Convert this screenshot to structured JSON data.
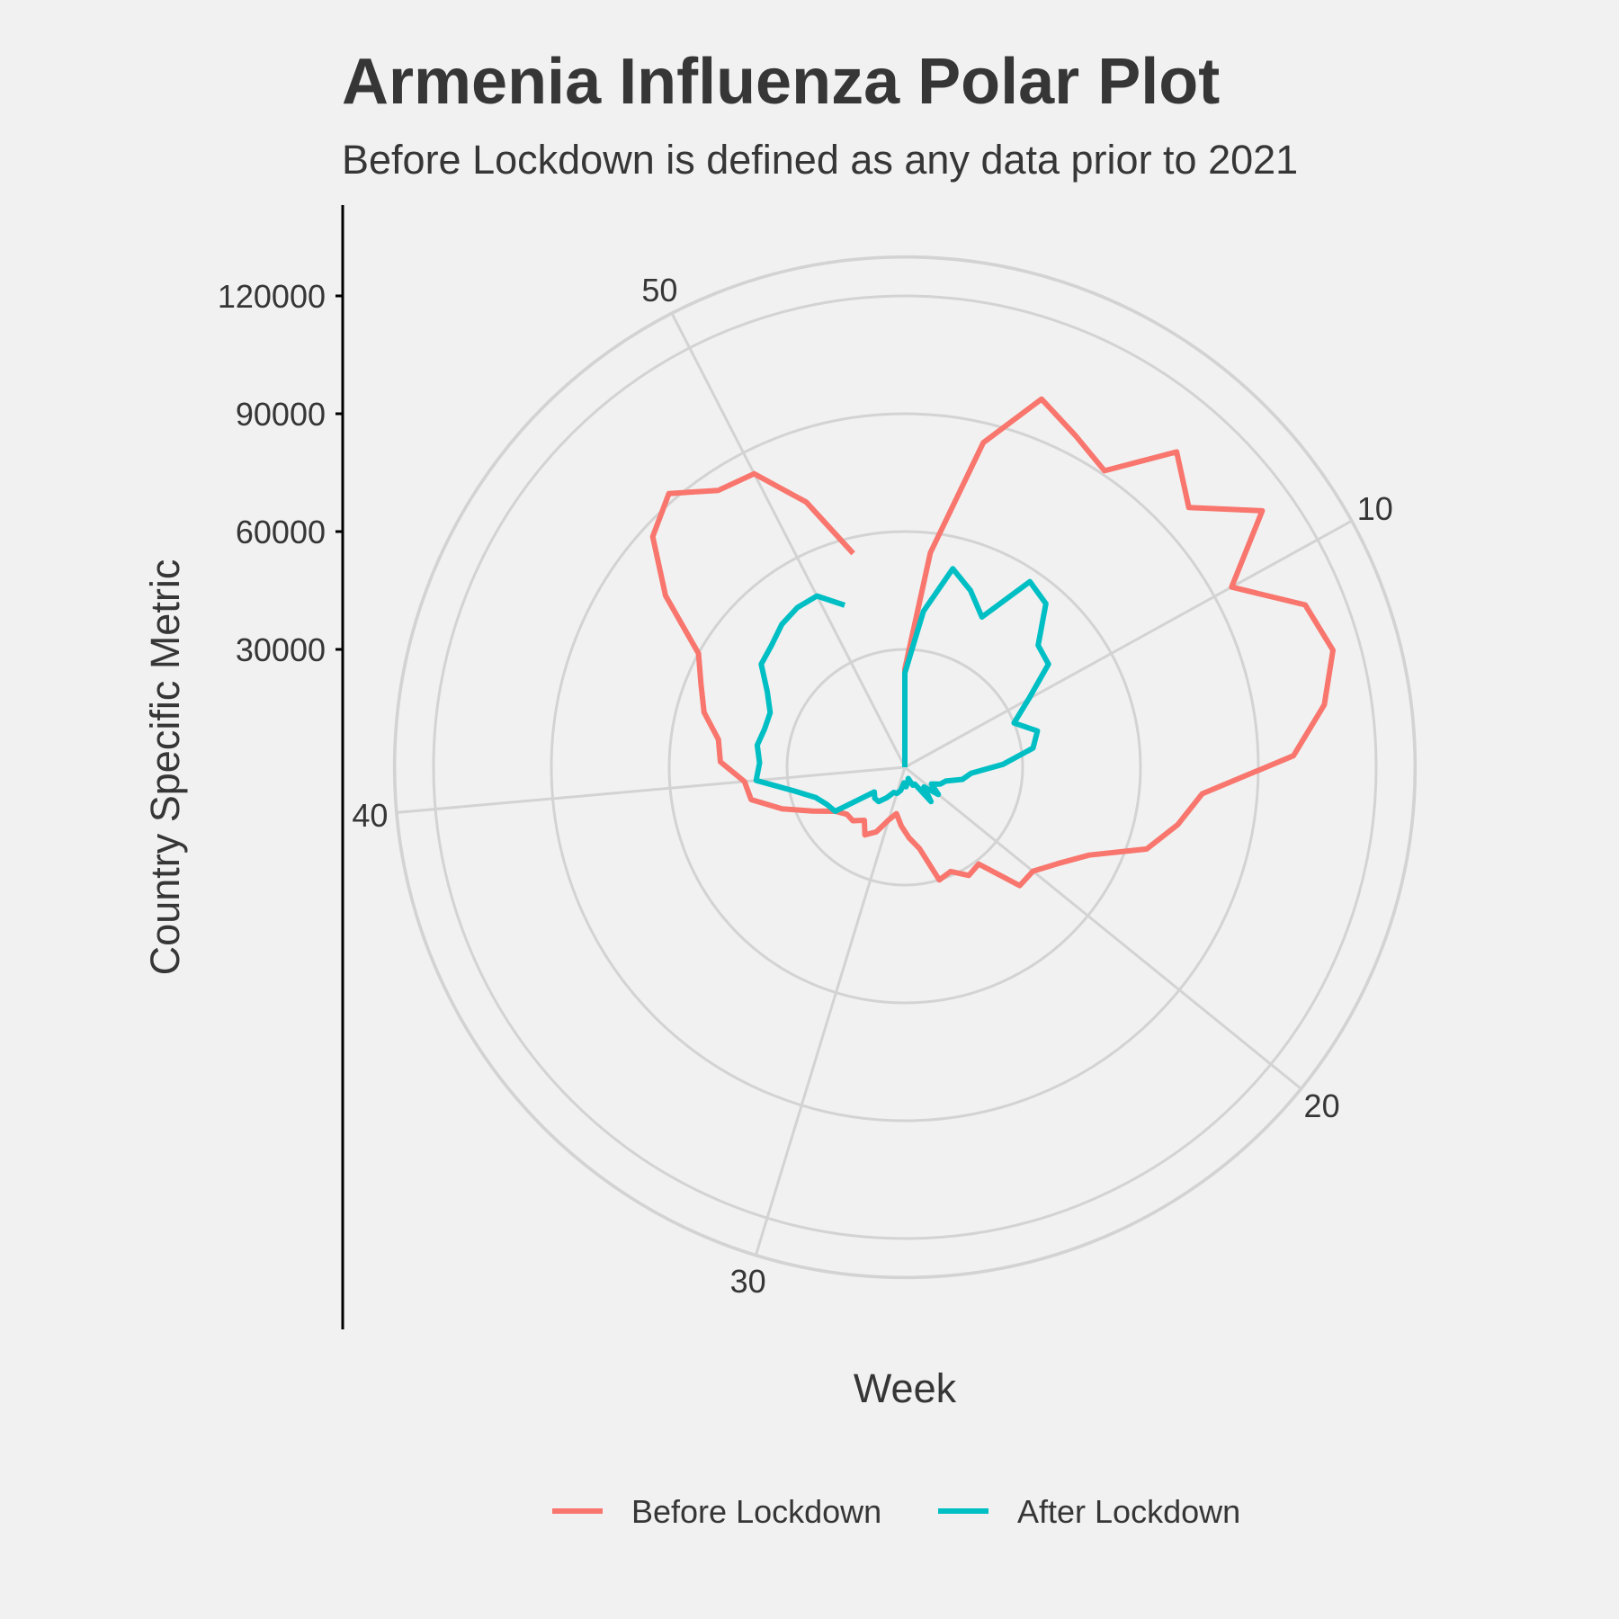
{
  "chart_data": {
    "type": "line",
    "coordinate_system": "polar",
    "title": "Armenia Influenza Polar Plot",
    "subtitle": "Before Lockdown is defined as any data prior to 2021",
    "xlabel": "Week",
    "ylabel": "Country Specific Metric",
    "x_ticks": [
      10,
      20,
      30,
      40,
      50
    ],
    "y_ticks": [
      30000,
      60000,
      90000,
      120000
    ],
    "ylim": [
      0,
      130000
    ],
    "grid": true,
    "legend_position": "bottom",
    "series": [
      {
        "name": "Before Lockdown",
        "color": "#f8766d",
        "x": [
          1,
          2,
          3,
          4,
          5,
          6,
          7,
          8,
          9,
          10,
          11,
          12,
          13,
          14,
          15,
          16,
          17,
          18,
          19,
          20,
          21,
          22,
          23,
          24,
          25,
          26,
          27,
          28,
          29,
          30,
          31,
          32,
          33,
          34,
          35,
          36,
          37,
          38,
          39,
          40,
          41,
          42,
          43,
          44,
          45,
          46,
          47,
          48,
          49,
          50,
          51,
          52
        ],
        "y": [
          25000,
          55000,
          85000,
          100000,
          95000,
          91000,
          106000,
          98000,
          112000,
          95000,
          110000,
          113000,
          108000,
          99000,
          76000,
          71000,
          65000,
          52000,
          46000,
          42000,
          42000,
          31000,
          32000,
          29000,
          30000,
          21000,
          18000,
          15000,
          12000,
          14000,
          18000,
          20000,
          17000,
          19000,
          19000,
          21000,
          26000,
          33000,
          40000,
          41000,
          47000,
          48000,
          53000,
          56000,
          60000,
          75000,
          87000,
          92000,
          85000,
          84000,
          72000,
          56000
        ]
      },
      {
        "name": "After Lockdown",
        "color": "#00bfc4",
        "x": [
          1,
          2,
          3,
          4,
          5,
          6,
          7,
          8,
          9,
          10,
          11,
          12,
          13,
          14,
          15,
          16,
          17,
          18,
          19,
          20,
          21,
          22,
          23,
          24,
          25,
          26,
          27,
          28,
          29,
          30,
          31,
          32,
          33,
          34,
          35,
          36,
          37,
          38,
          39,
          40,
          41,
          42,
          43,
          44,
          45,
          46,
          47,
          48,
          49,
          50,
          51
        ],
        "y": [
          24000,
          40000,
          52000,
          48000,
          43000,
          57000,
          55000,
          46000,
          45000,
          36000,
          30000,
          35000,
          33000,
          25000,
          17000,
          15000,
          11000,
          10000,
          8000,
          11000,
          7000,
          11000,
          5000,
          5000,
          3000,
          4000,
          5000,
          4000,
          6000,
          7000,
          7000,
          9000,
          11000,
          11000,
          10000,
          21000,
          22000,
          24000,
          29000,
          38000,
          37000,
          38000,
          37000,
          37000,
          40000,
          45000,
          46000,
          48000,
          49000,
          49000,
          44000
        ]
      }
    ]
  }
}
